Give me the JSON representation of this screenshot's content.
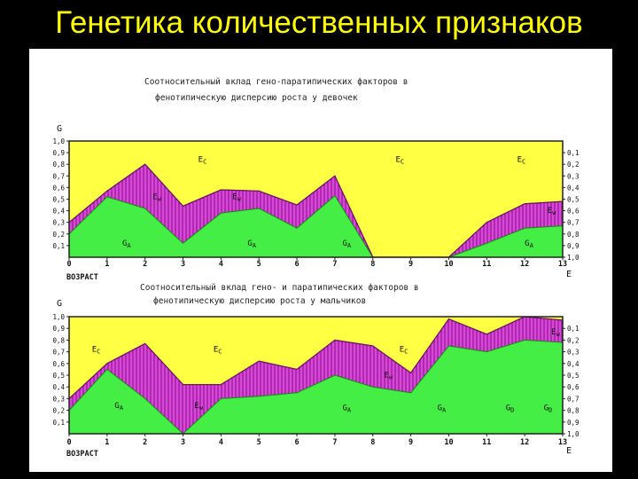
{
  "slide_title": "Генетика количественных признаков",
  "colors": {
    "yellow": "#ffff44",
    "magenta": "#dd44dd",
    "green": "#44ee44",
    "pink": "#ff66ff",
    "background": "#000000",
    "title": "#ffff00"
  },
  "chart_data": [
    {
      "type": "area",
      "title_line1": "Соотносительный вклад гено-паратипических факторов в",
      "title_line2": "фенотипическую дисперсию роста у девочек",
      "y_label_left": "G",
      "y_label_right": "E",
      "xlabel": "ВОЗРАСТ",
      "x": [
        0,
        1,
        2,
        3,
        4,
        5,
        6,
        7,
        8,
        9,
        10,
        11,
        12,
        13
      ],
      "x_ticks": [
        "0",
        "1",
        "2",
        "3",
        "4",
        "5",
        "6",
        "7",
        "8",
        "9",
        "10",
        "11",
        "12",
        "13"
      ],
      "y_ticks_left": [
        "1,0",
        "0,9",
        "0,8",
        "0,7",
        "0,6",
        "0,5",
        "0,4",
        "0,3",
        "0,2",
        "0,1"
      ],
      "y_ticks_right": [
        "0,1",
        "0,2",
        "0,3",
        "0,4",
        "0,5",
        "0,6",
        "0,7",
        "0,8",
        "0,9",
        "1,0"
      ],
      "ylim": [
        0,
        1
      ],
      "series": [
        {
          "name": "G_A",
          "values": [
            0.2,
            0.52,
            0.42,
            0.12,
            0.38,
            0.42,
            0.25,
            0.53,
            0,
            0,
            0,
            0.12,
            0.25,
            0.27
          ]
        },
        {
          "name": "E_w",
          "values": [
            0.1,
            0.05,
            0.38,
            0.32,
            0.2,
            0.15,
            0.2,
            0.17,
            0,
            0,
            0,
            0.18,
            0.21,
            0.21
          ]
        },
        {
          "name": "E_c",
          "values": [
            0.7,
            0.43,
            0.2,
            0.56,
            0.42,
            0.43,
            0.55,
            0.3,
            1,
            1,
            1,
            0.7,
            0.54,
            0.52
          ]
        }
      ],
      "annotations": [
        {
          "text": "E",
          "sub": "C",
          "x": 3.4,
          "y": 0.82
        },
        {
          "text": "E",
          "sub": "C",
          "x": 8.6,
          "y": 0.82
        },
        {
          "text": "E",
          "sub": "C",
          "x": 11.8,
          "y": 0.82
        },
        {
          "text": "E",
          "sub": "w",
          "x": 2.2,
          "y": 0.5
        },
        {
          "text": "E",
          "sub": "w",
          "x": 4.3,
          "y": 0.5
        },
        {
          "text": "E",
          "sub": "w",
          "x": 12.6,
          "y": 0.38
        },
        {
          "text": "G",
          "sub": "A",
          "x": 1.4,
          "y": 0.1
        },
        {
          "text": "G",
          "sub": "A",
          "x": 4.7,
          "y": 0.1
        },
        {
          "text": "G",
          "sub": "A",
          "x": 7.2,
          "y": 0.1
        },
        {
          "text": "G",
          "sub": "A",
          "x": 12.0,
          "y": 0.1
        }
      ]
    },
    {
      "type": "area",
      "title_line1": "Соотносительный вклад гено- и паратипических факторов в",
      "title_line2": "фенотипическую дисперсию роста у мальчиков",
      "y_label_left": "G",
      "y_label_right": "E",
      "xlabel": "ВОЗРАСТ",
      "x": [
        0,
        1,
        2,
        3,
        4,
        5,
        6,
        7,
        8,
        9,
        10,
        11,
        12,
        13
      ],
      "x_ticks": [
        "0",
        "1",
        "2",
        "3",
        "4",
        "5",
        "6",
        "7",
        "8",
        "9",
        "10",
        "11",
        "12",
        "13"
      ],
      "y_ticks_left": [
        "1,0",
        "0,9",
        "0,8",
        "0,7",
        "0,6",
        "0,5",
        "0,4",
        "0,3",
        "0,2",
        "0,1"
      ],
      "y_ticks_right": [
        "0,1",
        "0,2",
        "0,3",
        "0,4",
        "0,5",
        "0,6",
        "0,7",
        "0,8",
        "0,9",
        "1,0"
      ],
      "ylim": [
        0,
        1
      ],
      "series": [
        {
          "name": "G_A",
          "values": [
            0.2,
            0.55,
            0.3,
            0,
            0.3,
            0.32,
            0.35,
            0.5,
            0.4,
            0.35,
            0.75,
            0.7,
            0.8,
            0.78
          ]
        },
        {
          "name": "E_w",
          "values": [
            0.1,
            0.05,
            0.47,
            0.42,
            0.12,
            0.3,
            0.2,
            0.3,
            0.35,
            0.17,
            0.23,
            0.15,
            0.2,
            0.19
          ]
        },
        {
          "name": "E_c",
          "values": [
            0.7,
            0.4,
            0.23,
            0.58,
            0.58,
            0.38,
            0.45,
            0.2,
            0.25,
            0.48,
            0.02,
            0.15,
            0,
            0.03
          ]
        }
      ],
      "annotations": [
        {
          "text": "E",
          "sub": "C",
          "x": 0.6,
          "y": 0.7
        },
        {
          "text": "E",
          "sub": "C",
          "x": 3.8,
          "y": 0.7
        },
        {
          "text": "E",
          "sub": "C",
          "x": 8.7,
          "y": 0.7
        },
        {
          "text": "E",
          "sub": "w",
          "x": 3.3,
          "y": 0.22
        },
        {
          "text": "E",
          "sub": "w",
          "x": 8.3,
          "y": 0.48
        },
        {
          "text": "E",
          "sub": "w",
          "x": 12.7,
          "y": 0.85
        },
        {
          "text": "G",
          "sub": "A",
          "x": 1.2,
          "y": 0.22
        },
        {
          "text": "G",
          "sub": "A",
          "x": 7.2,
          "y": 0.2
        },
        {
          "text": "G",
          "sub": "A",
          "x": 9.7,
          "y": 0.2
        },
        {
          "text": "G",
          "sub": "D",
          "x": 11.5,
          "y": 0.2
        },
        {
          "text": "G",
          "sub": "D",
          "x": 12.5,
          "y": 0.2
        }
      ]
    }
  ]
}
